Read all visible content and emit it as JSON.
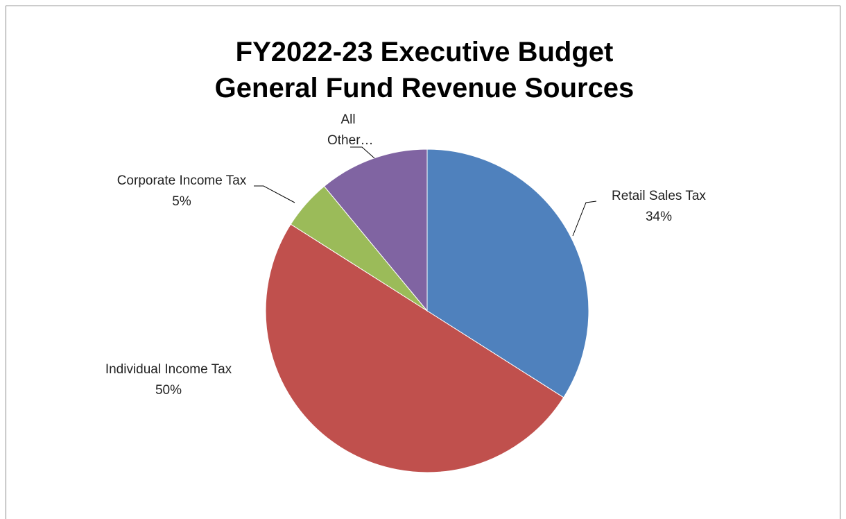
{
  "chart_data": {
    "type": "pie",
    "title": "FY2022-23 Executive Budget",
    "subtitle": "General Fund Revenue Sources",
    "categories": [
      "Retail Sales Tax",
      "Individual Income Tax",
      "Corporate Income Tax",
      "All Other…"
    ],
    "values": [
      34,
      50,
      5,
      11
    ],
    "value_labels": [
      "34%",
      "50%",
      "5%",
      null
    ],
    "colors": [
      "#4f81bd",
      "#c0504d",
      "#9bbb59",
      "#8064a2"
    ]
  }
}
